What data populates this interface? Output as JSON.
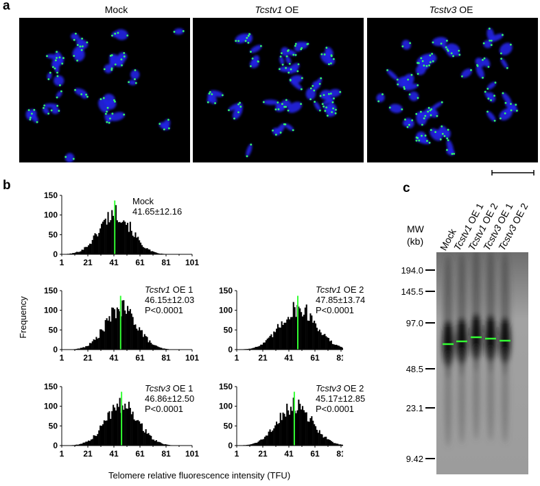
{
  "panel_a": {
    "letter": "a",
    "images": [
      {
        "title_italic": "",
        "title_rest": "Mock",
        "seed": 11,
        "clusters": 18,
        "spread": "loose"
      },
      {
        "title_italic": "Tcstv1",
        "title_rest": " OE",
        "seed": 23,
        "clusters": 26,
        "spread": "dense"
      },
      {
        "title_italic": "Tcstv3",
        "title_rest": " OE",
        "seed": 37,
        "clusters": 30,
        "spread": "dense"
      }
    ],
    "colors": {
      "chromosome": "#2323e6",
      "telomere": "#33ff66",
      "background": "#000000"
    }
  },
  "panel_b": {
    "letter": "b",
    "ylabel": "Frequency",
    "xlabel": "Telomere relative fluorescence intensity (TFU)",
    "x_ticks": [
      1,
      21,
      41,
      61,
      81,
      101
    ],
    "y_ticks": [
      0,
      50,
      100,
      150
    ],
    "histograms": [
      {
        "id": "mock",
        "name_italic": "",
        "name_rest": "Mock",
        "stat": "41.65±12.16",
        "pval": "",
        "mean": 41.65,
        "sd": 12.16,
        "peak": 105
      },
      {
        "id": "tcstv1-oe1",
        "name_italic": "Tcstv1",
        "name_rest": " OE 1",
        "stat": "46.15±12.03",
        "pval": "P<0.0001",
        "mean": 46.15,
        "sd": 12.03,
        "peak": 105
      },
      {
        "id": "tcstv1-oe2",
        "name_italic": "Tcstv1",
        "name_rest": " OE 2",
        "stat": "47.85±13.74",
        "pval": "P<0.0001",
        "mean": 47.85,
        "sd": 13.74,
        "peak": 105
      },
      {
        "id": "tcstv3-oe1",
        "name_italic": "Tcstv3",
        "name_rest": " OE 1",
        "stat": "46.86±12.50",
        "pval": "P<0.0001",
        "mean": 46.86,
        "sd": 12.5,
        "peak": 105
      },
      {
        "id": "tcstv3-oe2",
        "name_italic": "Tcstv3",
        "name_rest": " OE 2",
        "stat": "45.17±12.85",
        "pval": "P<0.0001",
        "mean": 45.17,
        "sd": 12.85,
        "peak": 105
      }
    ],
    "colors": {
      "bars": "#000000",
      "mean_line": "#33ff33"
    }
  },
  "panel_c": {
    "letter": "c",
    "mw_title": "MW",
    "mw_unit": "(kb)",
    "markers": [
      "194.0",
      "145.5",
      "97.0",
      "48.5",
      "23.1",
      "9.42"
    ],
    "lanes": [
      {
        "italic": "",
        "rest": "Mock"
      },
      {
        "italic": "Tcstv1",
        "rest": " OE 1"
      },
      {
        "italic": "Tcstv1",
        "rest": " OE 2"
      },
      {
        "italic": "Tcstv3",
        "rest": " OE 1"
      },
      {
        "italic": "Tcstv3",
        "rest": " OE 2"
      }
    ],
    "colors": {
      "gel": "#9a9a9a",
      "smear": "#101010",
      "band_marker": "#33ff33"
    }
  },
  "chart_data": [
    {
      "type": "bar",
      "title": "Mock",
      "subtitle": "41.65±12.16",
      "xlabel": "Telomere relative fluorescence intensity (TFU)",
      "ylabel": "Frequency",
      "xlim": [
        1,
        101
      ],
      "ylim": [
        0,
        150
      ],
      "mean": 41.65,
      "sd": 12.16
    },
    {
      "type": "bar",
      "title": "Tcstv1 OE 1",
      "subtitle": "46.15±12.03 P<0.0001",
      "xlim": [
        1,
        101
      ],
      "ylim": [
        0,
        150
      ],
      "mean": 46.15,
      "sd": 12.03
    },
    {
      "type": "bar",
      "title": "Tcstv1 OE 2",
      "subtitle": "47.85±13.74 P<0.0001",
      "xlim": [
        1,
        101
      ],
      "ylim": [
        0,
        150
      ],
      "mean": 47.85,
      "sd": 13.74
    },
    {
      "type": "bar",
      "title": "Tcstv3 OE 1",
      "subtitle": "46.86±12.50 P<0.0001",
      "xlim": [
        1,
        101
      ],
      "ylim": [
        0,
        150
      ],
      "mean": 46.86,
      "sd": 12.5
    },
    {
      "type": "bar",
      "title": "Tcstv3 OE 2",
      "subtitle": "45.17±12.85 P<0.0001",
      "xlim": [
        1,
        101
      ],
      "ylim": [
        0,
        150
      ],
      "mean": 45.17,
      "sd": 12.85
    }
  ]
}
